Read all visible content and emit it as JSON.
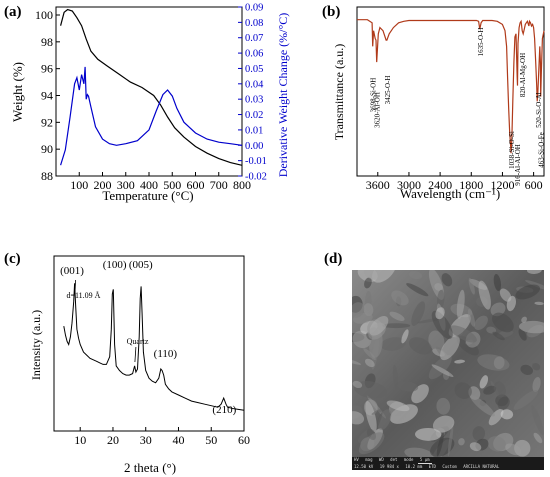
{
  "panels": {
    "a": {
      "tag": "(a)"
    },
    "b": {
      "tag": "(b)"
    },
    "c": {
      "tag": "(c)"
    },
    "d": {
      "tag": "(d)"
    }
  },
  "chart_data": [
    {
      "panel": "a",
      "type": "line",
      "xlabel": "Temperature (°C)",
      "ylabel_left": "Weight (%)",
      "ylabel_right": "Derivative Weight Change (%/°C)",
      "xlim": [
        0,
        800
      ],
      "ylim_left": [
        88,
        100
      ],
      "ylim_right": [
        -0.02,
        0.09
      ],
      "x_ticks": [
        "100",
        "200",
        "300",
        "400",
        "500",
        "600",
        "700",
        "800"
      ],
      "y_left_ticks": [
        "88",
        "90",
        "92",
        "94",
        "96",
        "98",
        "100"
      ],
      "y_right_ticks": [
        "-0.02",
        "-0.01",
        "0.00",
        "0.01",
        "0.02",
        "0.03",
        "0.04",
        "0.05",
        "0.06",
        "0.07",
        "0.08",
        "0.09"
      ],
      "series": [
        {
          "axis": "left",
          "color": "#000000",
          "x": [
            20,
            35,
            50,
            70,
            90,
            110,
            130,
            150,
            180,
            220,
            270,
            320,
            370,
            420,
            450,
            480,
            510,
            550,
            600,
            650,
            700,
            750,
            800
          ],
          "y": [
            99.2,
            100.2,
            100.4,
            100.3,
            99.8,
            99.2,
            98.2,
            97.3,
            96.7,
            96.2,
            95.6,
            95.0,
            94.6,
            94.0,
            93.3,
            92.4,
            91.6,
            90.9,
            90.2,
            89.7,
            89.3,
            89.0,
            88.8
          ]
        },
        {
          "axis": "right",
          "color": "#0000cc",
          "x": [
            20,
            40,
            60,
            80,
            90,
            100,
            110,
            120,
            125,
            130,
            135,
            140,
            150,
            170,
            200,
            230,
            260,
            300,
            350,
            400,
            430,
            460,
            480,
            500,
            520,
            550,
            600,
            650,
            700,
            750,
            800
          ],
          "y": [
            -0.013,
            -0.003,
            0.018,
            0.04,
            0.044,
            0.036,
            0.046,
            0.04,
            0.051,
            0.03,
            0.033,
            0.032,
            0.025,
            0.012,
            0.004,
            0.001,
            0.0,
            0.001,
            0.003,
            0.01,
            0.022,
            0.033,
            0.036,
            0.032,
            0.024,
            0.015,
            0.008,
            0.004,
            0.002,
            0.001,
            0.0
          ]
        }
      ]
    },
    {
      "panel": "b",
      "type": "line",
      "xlabel": "Wavelength (cm⁻¹)",
      "ylabel": "Transmittance (a.u.)",
      "xlim": [
        4000,
        400
      ],
      "x_ticks": [
        "3600",
        "3000",
        "2400",
        "1800",
        "1200",
        "600"
      ],
      "color": "#b03a1a",
      "x": [
        4000,
        3800,
        3710,
        3698,
        3680,
        3650,
        3635,
        3620,
        3590,
        3560,
        3500,
        3440,
        3425,
        3380,
        3300,
        3200,
        3100,
        3000,
        2800,
        2600,
        2400,
        2200,
        2000,
        1800,
        1700,
        1660,
        1635,
        1610,
        1580,
        1500,
        1400,
        1300,
        1200,
        1150,
        1120,
        1100,
        1080,
        1060,
        1040,
        1035,
        1020,
        1000,
        980,
        960,
        940,
        915,
        910,
        900,
        880,
        860,
        840,
        820,
        800,
        780,
        760,
        740,
        720,
        700,
        690,
        680,
        660,
        640,
        620,
        600,
        580,
        560,
        540,
        530,
        520,
        500,
        480,
        470,
        463,
        450,
        430,
        400
      ],
      "y": [
        0.97,
        0.97,
        0.95,
        0.8,
        0.9,
        0.85,
        0.84,
        0.7,
        0.88,
        0.92,
        0.9,
        0.84,
        0.84,
        0.88,
        0.92,
        0.95,
        0.96,
        0.965,
        0.965,
        0.965,
        0.965,
        0.965,
        0.965,
        0.965,
        0.965,
        0.96,
        0.91,
        0.95,
        0.965,
        0.965,
        0.965,
        0.96,
        0.94,
        0.9,
        0.8,
        0.6,
        0.4,
        0.25,
        0.15,
        0.12,
        0.2,
        0.45,
        0.7,
        0.86,
        0.88,
        0.6,
        0.55,
        0.82,
        0.92,
        0.95,
        0.96,
        0.9,
        0.88,
        0.91,
        0.94,
        0.95,
        0.96,
        0.94,
        0.93,
        0.96,
        0.95,
        0.93,
        0.94,
        0.92,
        0.85,
        0.7,
        0.55,
        0.45,
        0.5,
        0.65,
        0.8,
        0.7,
        0.48,
        0.65,
        0.85,
        0.9
      ],
      "annotations": [
        "3698-Si-OH",
        "3620-Al-OH",
        "3425-O-H",
        "1635-O-H",
        "1038-Si-O-Si",
        "916-Al-Al-OH",
        "820-Al-Mg-OH",
        "520-Si-O-Al",
        "463-Si-O-Fe"
      ]
    },
    {
      "panel": "c",
      "type": "line",
      "xlabel": "2 theta (°)",
      "ylabel": "Intensity (a.u.)",
      "xlim": [
        2,
        60
      ],
      "x_ticks": [
        "10",
        "20",
        "30",
        "40",
        "50",
        "60"
      ],
      "color": "#000000",
      "x": [
        5,
        5.5,
        6,
        6.5,
        7,
        7.5,
        8,
        8.3,
        8.6,
        9,
        9.5,
        10,
        11,
        12,
        13,
        14,
        15,
        16,
        17,
        18,
        19,
        19.5,
        19.8,
        20.1,
        20.5,
        21,
        22,
        23,
        24,
        25,
        26,
        26.6,
        27,
        27.5,
        28,
        28.3,
        28.6,
        28.9,
        29.3,
        30,
        31,
        32,
        33,
        34,
        34.6,
        35,
        35.5,
        36,
        37,
        38,
        40,
        42,
        44,
        46,
        48,
        50,
        52,
        53,
        53.8,
        54.5,
        55,
        57,
        60
      ],
      "y": [
        0.62,
        0.56,
        0.52,
        0.5,
        0.55,
        0.64,
        0.78,
        0.9,
        0.76,
        0.6,
        0.54,
        0.5,
        0.45,
        0.43,
        0.41,
        0.4,
        0.39,
        0.38,
        0.37,
        0.37,
        0.42,
        0.6,
        0.83,
        0.86,
        0.5,
        0.36,
        0.33,
        0.31,
        0.3,
        0.3,
        0.31,
        0.36,
        0.32,
        0.34,
        0.55,
        0.8,
        0.88,
        0.7,
        0.45,
        0.33,
        0.28,
        0.26,
        0.25,
        0.28,
        0.34,
        0.33,
        0.3,
        0.24,
        0.21,
        0.19,
        0.17,
        0.15,
        0.13,
        0.12,
        0.11,
        0.1,
        0.09,
        0.11,
        0.15,
        0.11,
        0.09,
        0.08,
        0.07
      ],
      "peaks": [
        "(001)",
        "(100)",
        "(005)",
        "(110)",
        "(210)"
      ],
      "annotations": [
        "d=11.09 Å",
        "Quartz"
      ]
    }
  ],
  "sem": {
    "scale_bar": "5 μm",
    "info_labels": [
      "HV",
      "mag",
      "WD",
      "det",
      "mode"
    ],
    "info_values": [
      "12.50 kV",
      "19 984 x",
      "10.2 mm",
      "ETD",
      "Custom"
    ],
    "sample": "ARCILLA NATURAL"
  }
}
